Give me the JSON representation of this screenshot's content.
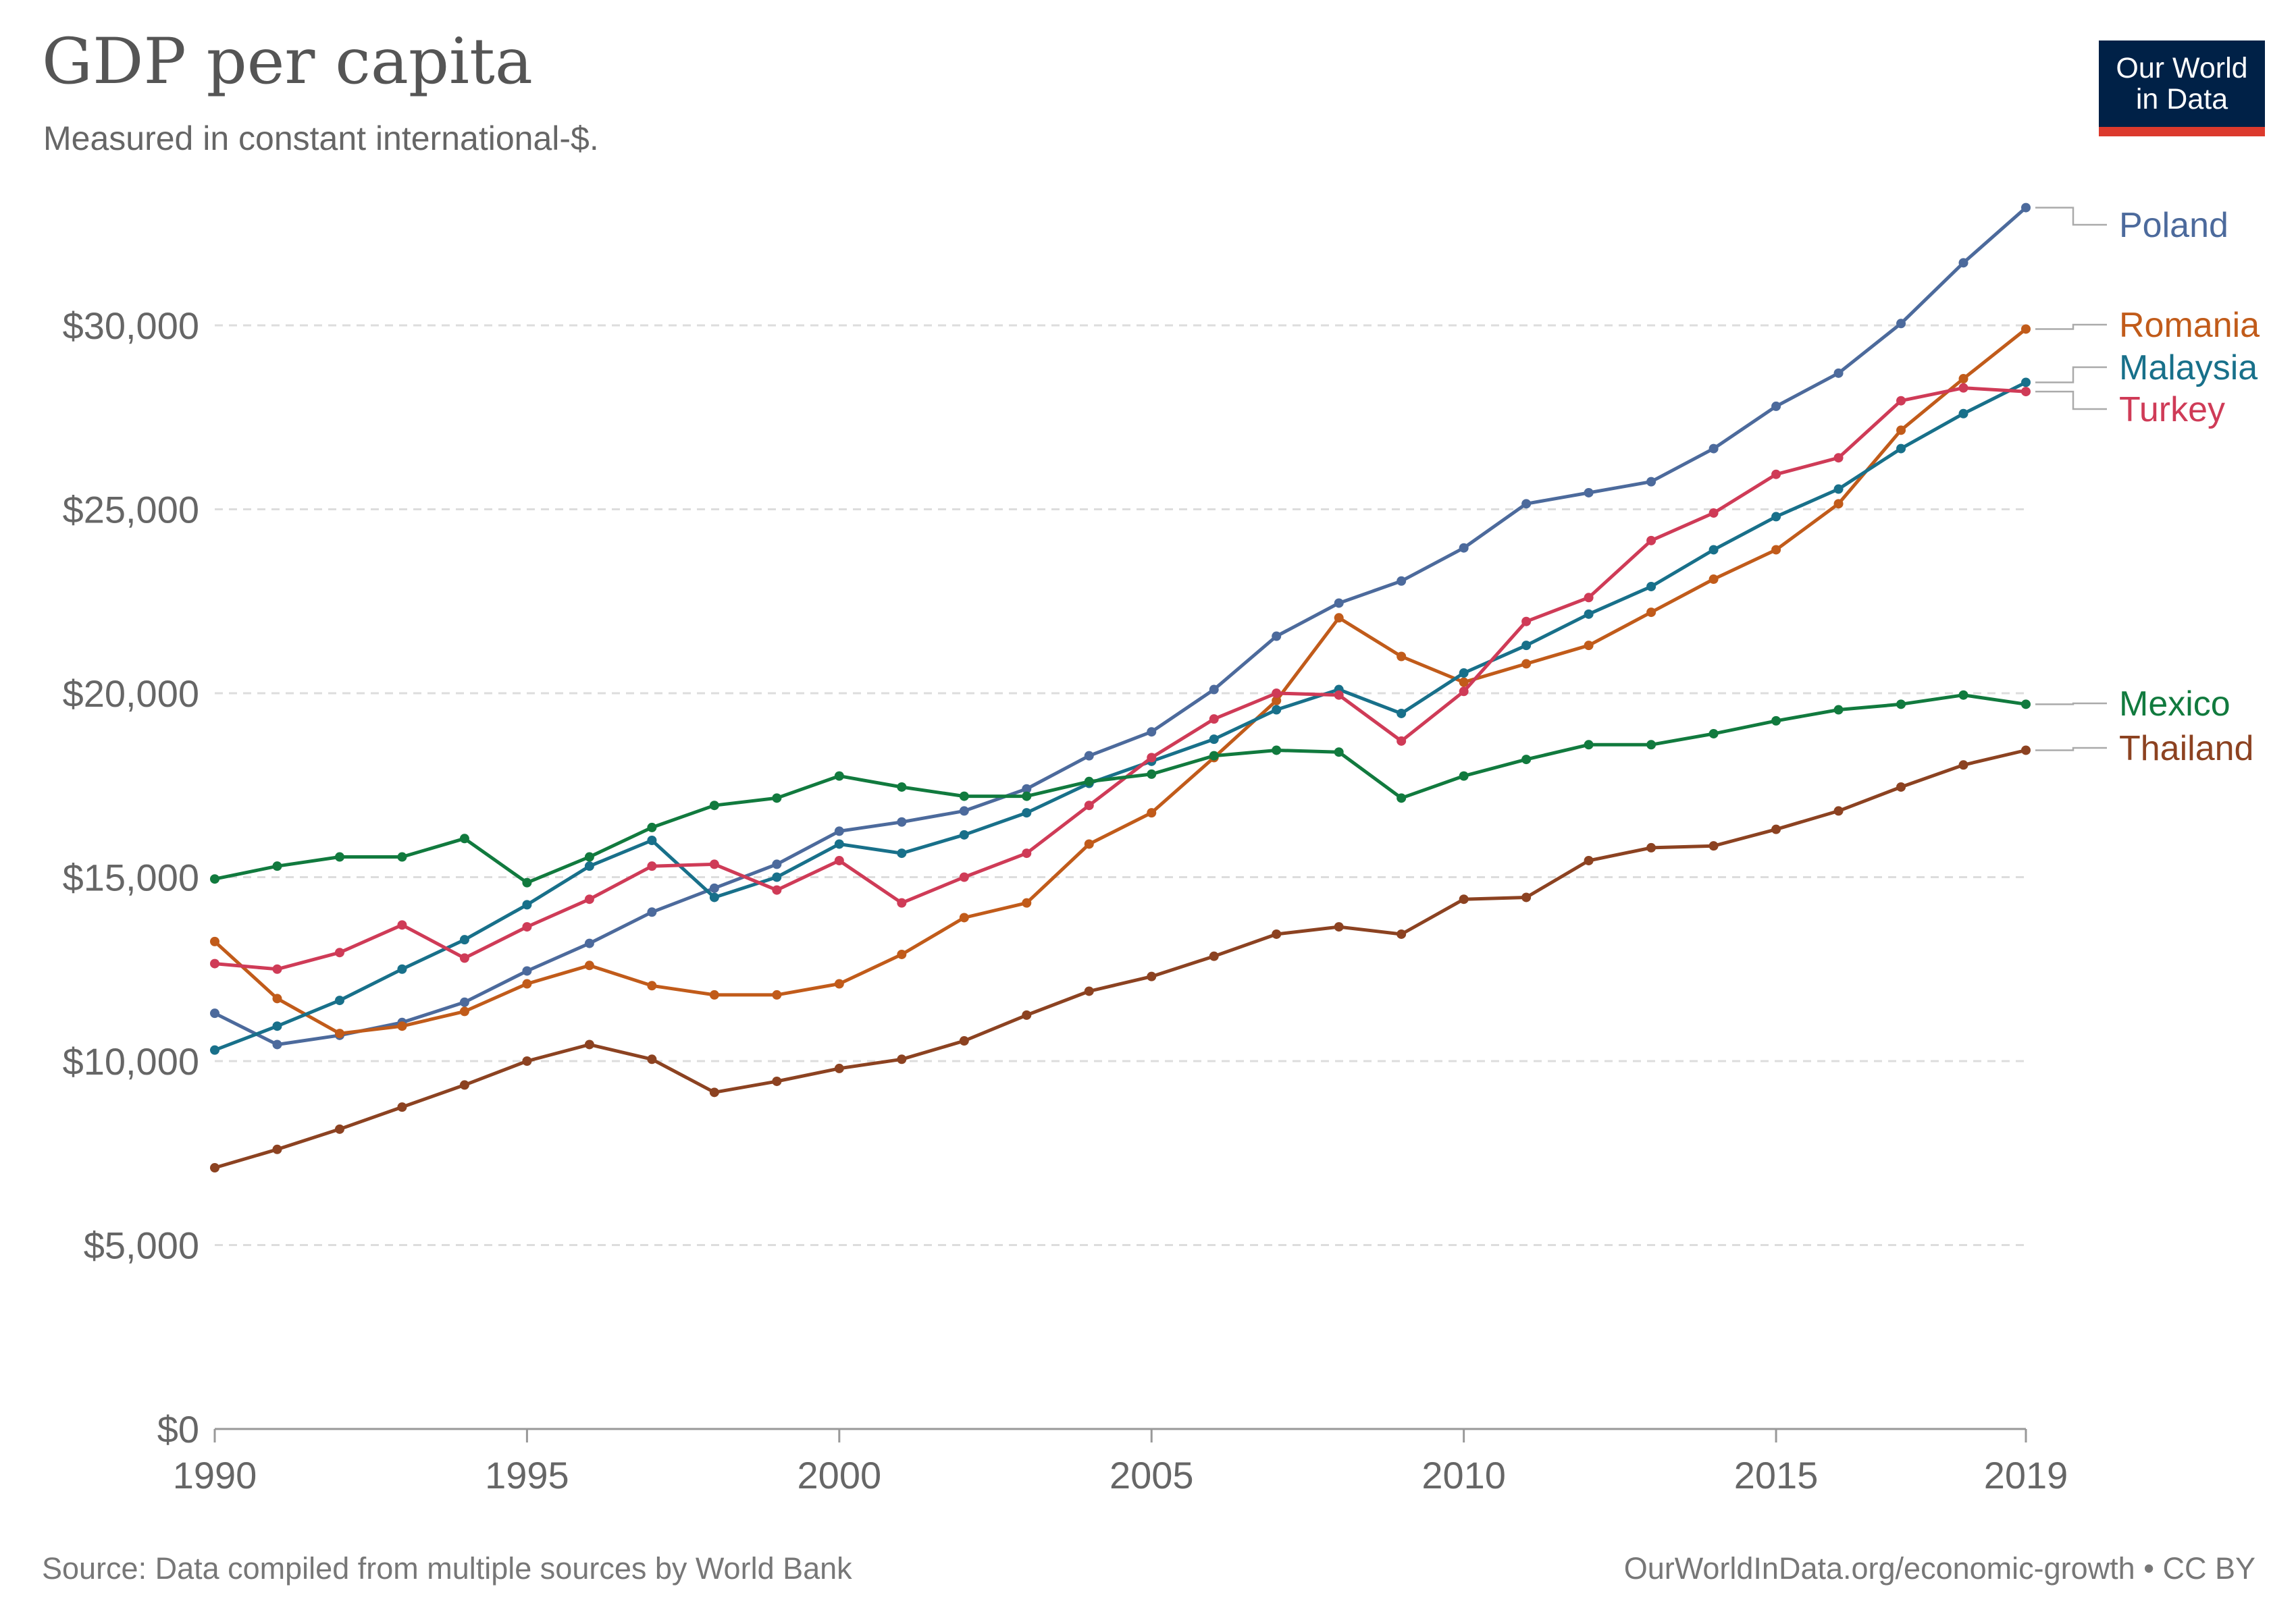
{
  "header": {
    "title": "GDP per capita",
    "subtitle": "Measured in constant international-$."
  },
  "logo": {
    "line1": "Our World",
    "line2": "in Data",
    "bg_color": "#002147",
    "accent_color": "#dc3a2d"
  },
  "footer": {
    "source": "Source: Data compiled from multiple sources by World Bank",
    "url": "OurWorldInData.org/economic-growth • CC BY"
  },
  "chart_data": {
    "type": "line",
    "title": "GDP per capita",
    "subtitle": "Measured in constant international-$.",
    "ylim": [
      0,
      33000
    ],
    "xlim": [
      1990,
      2019
    ],
    "y_ticks": [
      0,
      5000,
      10000,
      15000,
      20000,
      25000,
      30000
    ],
    "y_tick_labels": [
      "$0",
      "$5,000",
      "$10,000",
      "$15,000",
      "$20,000",
      "$25,000",
      "$30,000"
    ],
    "x_ticks": [
      1990,
      1995,
      2000,
      2005,
      2010,
      2015,
      2019
    ],
    "x_tick_labels": [
      "1990",
      "1995",
      "2000",
      "2005",
      "2010",
      "2015",
      "2019"
    ],
    "grid": "horizontal-dashed",
    "legend": "inline-right",
    "x": [
      1990,
      1991,
      1992,
      1993,
      1994,
      1995,
      1996,
      1997,
      1998,
      1999,
      2000,
      2001,
      2002,
      2003,
      2004,
      2005,
      2006,
      2007,
      2008,
      2009,
      2010,
      2011,
      2012,
      2013,
      2014,
      2015,
      2016,
      2017,
      2018,
      2019
    ],
    "series": [
      {
        "name": "Poland",
        "color": "#4c6a9c",
        "values": [
          11300,
          10450,
          10700,
          11050,
          11600,
          12450,
          13200,
          14050,
          14700,
          15350,
          16250,
          16500,
          16800,
          17400,
          18300,
          18950,
          20100,
          21550,
          22450,
          23050,
          23950,
          25150,
          25450,
          25750,
          26650,
          27800,
          28700,
          30050,
          31700,
          33200
        ]
      },
      {
        "name": "Romania",
        "color": "#c15b1a",
        "values": [
          13250,
          11700,
          10750,
          10950,
          11350,
          12100,
          12600,
          12050,
          11800,
          11800,
          12100,
          12900,
          13900,
          14300,
          15900,
          16750,
          18250,
          19800,
          22050,
          21000,
          20300,
          20800,
          21300,
          22200,
          23100,
          23900,
          25150,
          27150,
          28550,
          29900
        ]
      },
      {
        "name": "Malaysia",
        "color": "#18708a",
        "values": [
          10300,
          10950,
          11650,
          12500,
          13300,
          14250,
          15300,
          16000,
          14450,
          15000,
          15900,
          15650,
          16150,
          16750,
          17550,
          18150,
          18750,
          19550,
          20100,
          19450,
          20550,
          21300,
          22150,
          22900,
          23900,
          24800,
          25550,
          26650,
          27600,
          28450
        ]
      },
      {
        "name": "Turkey",
        "color": "#cf3b57",
        "values": [
          12650,
          12500,
          12950,
          13700,
          12800,
          13650,
          14400,
          15300,
          15350,
          14650,
          15450,
          14300,
          15000,
          15650,
          16950,
          18250,
          19300,
          20000,
          19950,
          18700,
          20050,
          21950,
          22600,
          24150,
          24900,
          25950,
          26400,
          27950,
          28300,
          28200
        ]
      },
      {
        "name": "Mexico",
        "color": "#117a3e",
        "values": [
          14950,
          15300,
          15550,
          15550,
          16050,
          14850,
          15550,
          16350,
          16950,
          17150,
          17750,
          17450,
          17200,
          17200,
          17600,
          17800,
          18300,
          18450,
          18400,
          17150,
          17750,
          18200,
          18600,
          18600,
          18900,
          19250,
          19550,
          19700,
          19950,
          19700
        ]
      },
      {
        "name": "Thailand",
        "color": "#8c4221",
        "values": [
          7100,
          7600,
          8150,
          8750,
          9350,
          10000,
          10450,
          10050,
          9150,
          9450,
          9800,
          10050,
          10550,
          11250,
          11900,
          12300,
          12850,
          13450,
          13650,
          13450,
          14400,
          14450,
          15450,
          15800,
          15850,
          16300,
          16800,
          17450,
          18050,
          18450
        ]
      }
    ]
  }
}
